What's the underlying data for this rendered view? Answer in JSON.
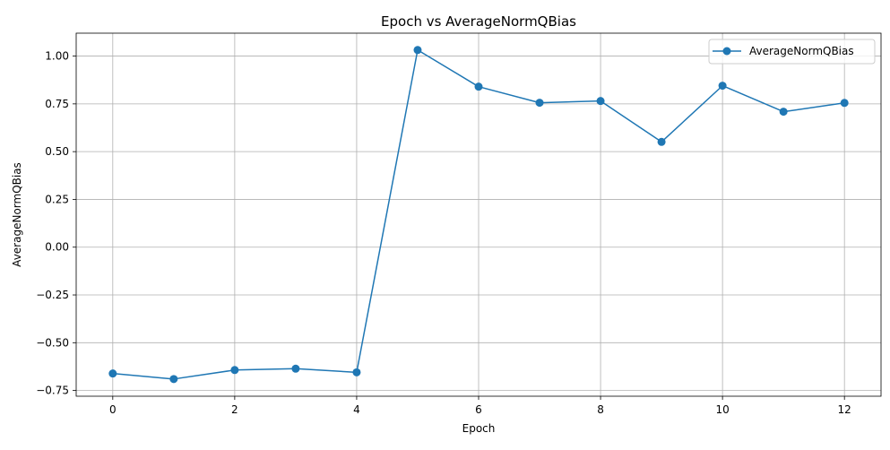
{
  "chart_data": {
    "type": "line",
    "title": "Epoch vs AverageNormQBias",
    "xlabel": "Epoch",
    "ylabel": "AverageNormQBias",
    "x": [
      0,
      1,
      2,
      3,
      4,
      5,
      6,
      7,
      8,
      9,
      10,
      11,
      12
    ],
    "series": [
      {
        "name": "AverageNormQBias",
        "values": [
          -0.661,
          -0.69,
          -0.643,
          -0.636,
          -0.655,
          1.032,
          0.84,
          0.756,
          0.765,
          0.551,
          0.845,
          0.709,
          0.755
        ],
        "color": "#1f77b4",
        "marker": "circle"
      }
    ],
    "xlim": [
      -0.6,
      12.6
    ],
    "ylim": [
      -0.78,
      1.12
    ],
    "xticks": [
      0,
      2,
      4,
      6,
      8,
      10,
      12
    ],
    "xtick_labels": [
      "0",
      "2",
      "4",
      "6",
      "8",
      "10",
      "12"
    ],
    "yticks": [
      -0.75,
      -0.5,
      -0.25,
      0.0,
      0.25,
      0.5,
      0.75,
      1.0
    ],
    "ytick_labels": [
      "−0.75",
      "−0.50",
      "−0.25",
      "0.00",
      "0.25",
      "0.50",
      "0.75",
      "1.00"
    ],
    "grid": true,
    "legend_position": "top-right"
  }
}
